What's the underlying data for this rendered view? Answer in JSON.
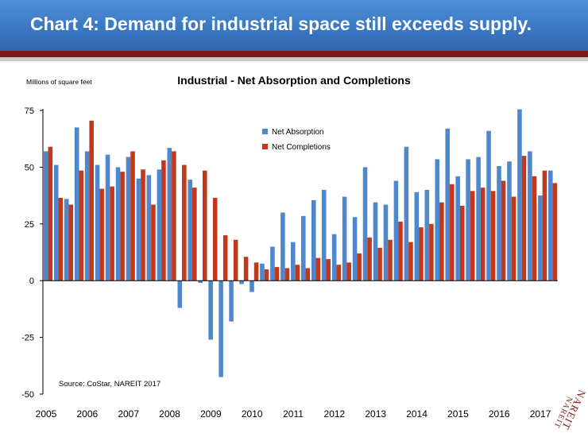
{
  "slide": {
    "title": "Chart 4: Demand for industrial space still exceeds supply."
  },
  "logo": {
    "text": "NAREIT"
  },
  "chart_data": {
    "type": "bar",
    "title": "Industrial - Net Absorption and Completions",
    "ylabel": "Millions of square feet",
    "xlabel": "",
    "ylim": [
      -50,
      75
    ],
    "yticks": [
      75,
      50,
      25,
      0,
      -25,
      -50
    ],
    "ytick_labels": [
      "75",
      "50",
      "25",
      "0",
      "-25",
      "-50"
    ],
    "x_tick_labels": [
      "2005",
      "2006",
      "2007",
      "2008",
      "2009",
      "2010",
      "2011",
      "2012",
      "2013",
      "2014",
      "2015",
      "2016",
      "2017"
    ],
    "grid": false,
    "legend": "top-center",
    "source": "Source: CoStar, NAREIT 2017",
    "quarters_per_year": 4,
    "series": [
      {
        "name": "Net Absorption",
        "color": "#4f87cc",
        "values": [
          57,
          51,
          36,
          67.5,
          57,
          51,
          55.5,
          50,
          54.5,
          45,
          46.5,
          49,
          58.5,
          -12,
          44.5,
          -1,
          -26,
          -42.5,
          -18,
          -1.5,
          -5,
          7.5,
          15,
          30,
          17,
          28.5,
          35.5,
          40,
          20.5,
          37,
          28,
          50,
          34.5,
          33.5,
          44,
          59,
          39,
          40,
          53.5,
          67,
          46,
          53.5,
          54.5,
          66,
          50.5,
          52.5,
          75.5,
          57,
          37.5,
          48.5
        ]
      },
      {
        "name": "Net Completions",
        "color": "#c0391c",
        "values": [
          59,
          36.5,
          33.5,
          48.5,
          70.5,
          40.5,
          41.5,
          48,
          57,
          49,
          33.5,
          53,
          57,
          51,
          41,
          48.5,
          36.5,
          20,
          18,
          10.5,
          8,
          5,
          6,
          5.5,
          7,
          5.5,
          10,
          9.5,
          7,
          8,
          12,
          19,
          14.5,
          18,
          26,
          17,
          23.5,
          25,
          34.5,
          42.5,
          33,
          39.5,
          41,
          39.5,
          44,
          37,
          55,
          46,
          48.5,
          43
        ]
      }
    ]
  }
}
